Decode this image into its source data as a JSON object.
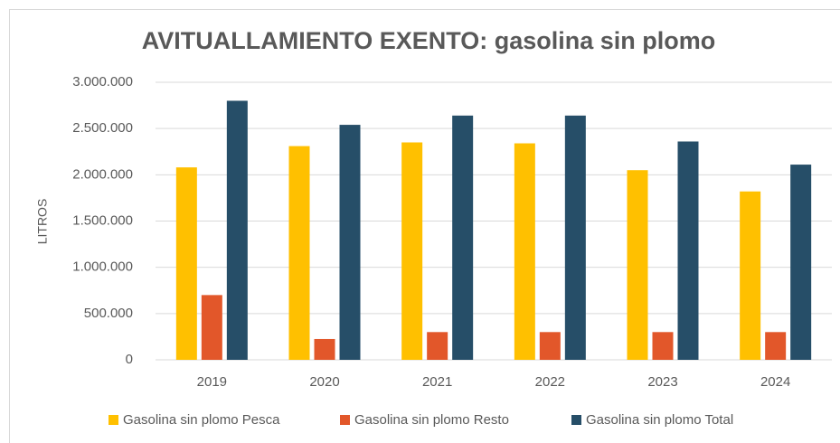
{
  "chart_data": {
    "type": "bar",
    "title": "AVITUALLAMIENTO  EXENTO: gasolina sin plomo",
    "y_label": "LITROS",
    "categories": [
      "2019",
      "2020",
      "2021",
      "2022",
      "2023",
      "2024"
    ],
    "series": [
      {
        "name": "Gasolina sin plomo Pesca",
        "color": "#ffc000",
        "values": [
          2080000,
          2310000,
          2350000,
          2340000,
          2050000,
          1820000
        ]
      },
      {
        "name": "Gasolina sin plomo Resto",
        "color": "#e2572a",
        "values": [
          700000,
          225000,
          300000,
          300000,
          300000,
          300000
        ]
      },
      {
        "name": "Gasolina sin plomo Total",
        "color": "#264e68",
        "values": [
          2800000,
          2540000,
          2640000,
          2640000,
          2360000,
          2110000
        ]
      }
    ],
    "ylim": [
      0,
      3000000
    ],
    "yticks": [
      0,
      {
        "value": 500000,
        "label": "500.000"
      },
      {
        "value": 1000000,
        "label": "1.000.000"
      },
      {
        "value": 1500000,
        "label": "1.500.000"
      },
      {
        "value": 2000000,
        "label": "2.000.000"
      },
      {
        "value": 2500000,
        "label": "2.500.000"
      },
      {
        "value": 3000000,
        "label": "3.000.000"
      }
    ],
    "grid": true,
    "legend": "bottom"
  }
}
